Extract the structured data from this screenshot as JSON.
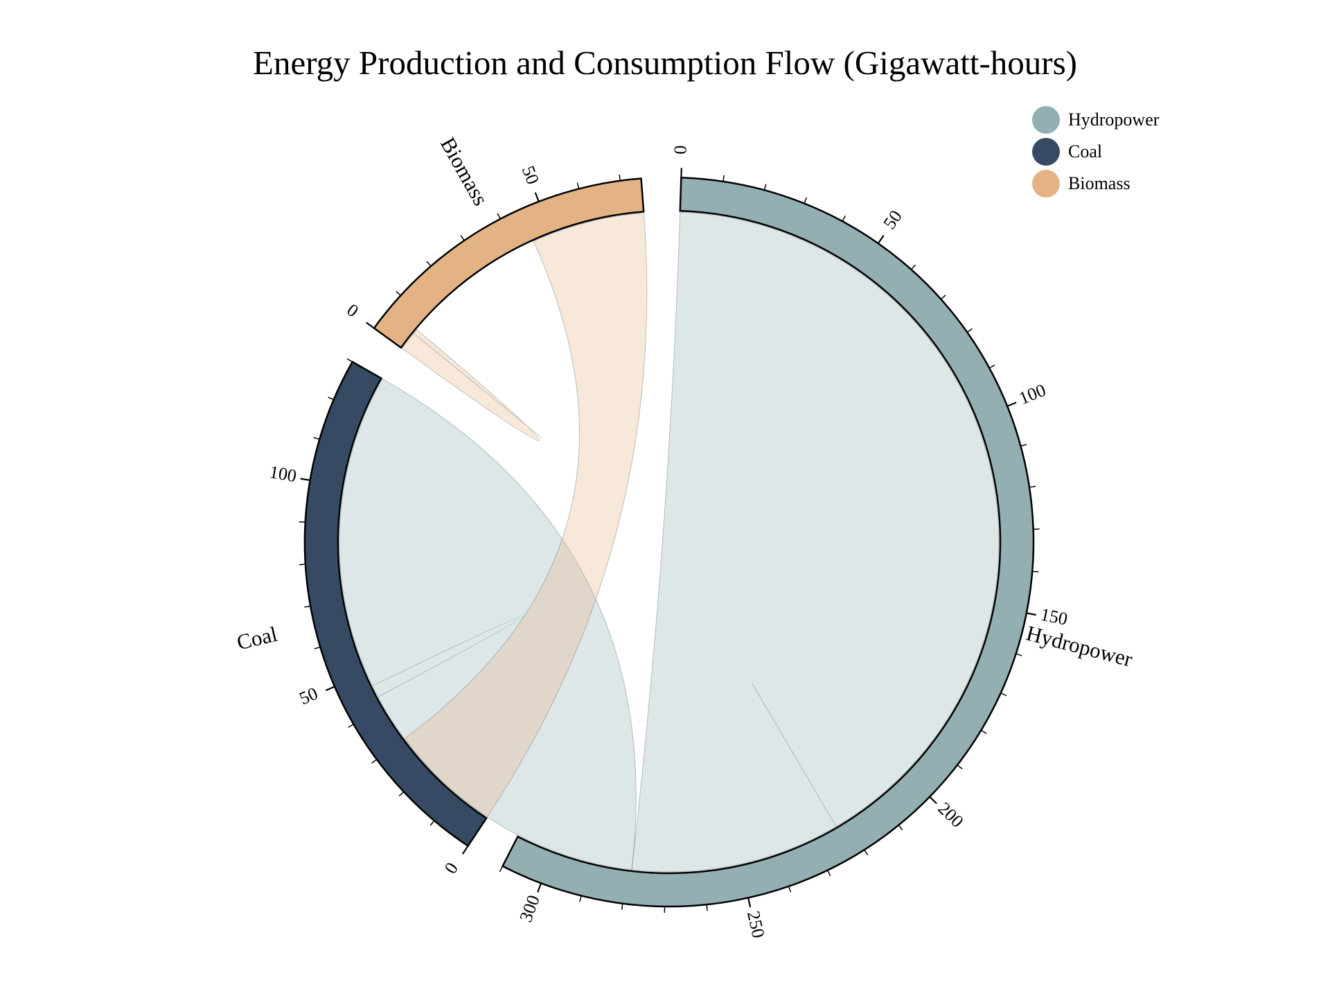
{
  "chart_data": {
    "type": "chord",
    "title": "Energy Production and Consumption Flow (Gigawatt-hours)",
    "nodes": [
      {
        "name": "Hydropower",
        "color": "#93afb2",
        "total": 310
      },
      {
        "name": "Coal",
        "color": "#364b63",
        "total": 130
      },
      {
        "name": "Biomass",
        "color": "#e4b385",
        "total": 75
      }
    ],
    "flows": [
      {
        "source": "Hydropower",
        "target": "Hydropower",
        "value": 223
      },
      {
        "source": "Hydropower",
        "target": "Coal",
        "value": 87
      },
      {
        "source": "Coal",
        "target": "Biomass",
        "value": 30
      },
      {
        "source": "Biomass",
        "target": "Biomass",
        "value": 5
      }
    ],
    "ticks": {
      "Hydropower": [
        "0",
        "50",
        "100",
        "150",
        "200",
        "250",
        "300"
      ],
      "Coal": [
        "0",
        "50",
        "100"
      ],
      "Biomass": [
        "0",
        "50"
      ]
    },
    "legend": {
      "placement": "top-right",
      "entries": [
        "Hydropower",
        "Coal",
        "Biomass"
      ]
    }
  }
}
